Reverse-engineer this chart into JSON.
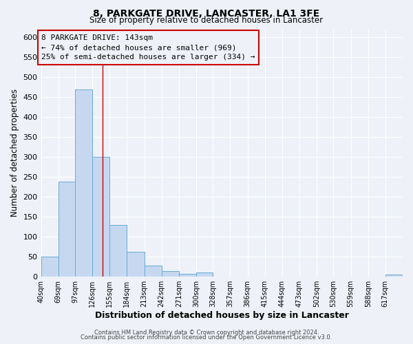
{
  "title1": "8, PARKGATE DRIVE, LANCASTER, LA1 3FE",
  "title2": "Size of property relative to detached houses in Lancaster",
  "xlabel": "Distribution of detached houses by size in Lancaster",
  "ylabel": "Number of detached properties",
  "bar_labels": [
    "40sqm",
    "69sqm",
    "97sqm",
    "126sqm",
    "155sqm",
    "184sqm",
    "213sqm",
    "242sqm",
    "271sqm",
    "300sqm",
    "328sqm",
    "357sqm",
    "386sqm",
    "415sqm",
    "444sqm",
    "473sqm",
    "502sqm",
    "530sqm",
    "559sqm",
    "588sqm",
    "617sqm"
  ],
  "bar_heights": [
    50,
    238,
    470,
    300,
    130,
    62,
    28,
    15,
    8,
    10,
    0,
    0,
    0,
    0,
    0,
    0,
    0,
    0,
    0,
    0,
    5
  ],
  "bar_color": "#c5d8f0",
  "bar_edge_color": "#6aaad4",
  "ylim": [
    0,
    620
  ],
  "yticks": [
    0,
    50,
    100,
    150,
    200,
    250,
    300,
    350,
    400,
    450,
    500,
    550,
    600
  ],
  "annotation_title": "8 PARKGATE DRIVE: 143sqm",
  "annotation_line1": "← 74% of detached houses are smaller (969)",
  "annotation_line2": "25% of semi-detached houses are larger (334) →",
  "annotation_box_color": "#cc0000",
  "footer1": "Contains HM Land Registry data © Crown copyright and database right 2024.",
  "footer2": "Contains public sector information licensed under the Open Government Licence v3.0.",
  "background_color": "#eef2f8",
  "grid_color": "#ffffff",
  "bin_edges": [
    40,
    69,
    97,
    126,
    155,
    184,
    213,
    242,
    271,
    300,
    328,
    357,
    386,
    415,
    444,
    473,
    502,
    530,
    559,
    588,
    617,
    646
  ],
  "property_line_x": 143
}
